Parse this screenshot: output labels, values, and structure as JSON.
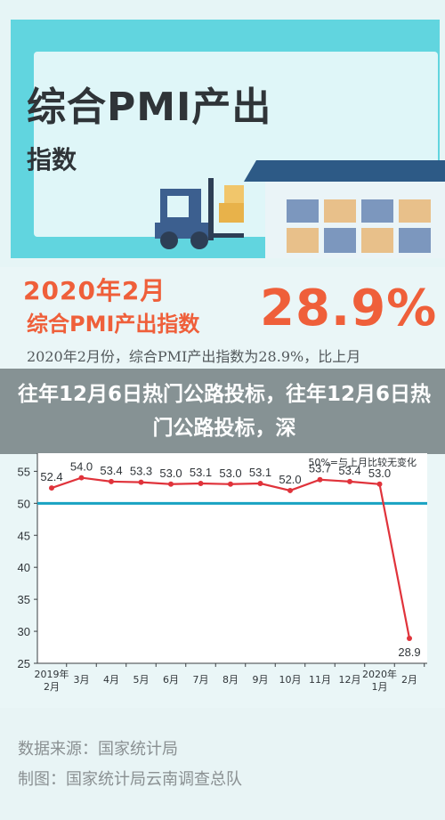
{
  "hero": {
    "title": "综合PMI产出",
    "subtitle": "指数"
  },
  "headline": {
    "line1": "2020年2月",
    "line2": "综合PMI产出指数",
    "value": "28.9%"
  },
  "description": "2020年2月份，综合PMI产出指数为28.9%，比上月",
  "article_title": "往年12月6日热门公路投标，往年12月6日热门公路投标，深",
  "chart_data": {
    "type": "line",
    "categories": [
      "2019年\n2月",
      "3月",
      "4月",
      "5月",
      "6月",
      "7月",
      "8月",
      "9月",
      "10月",
      "11月",
      "12月",
      "2020年\n1月",
      "2月"
    ],
    "series": [
      {
        "values": [
          52.4,
          54.0,
          53.4,
          53.3,
          53.0,
          53.1,
          53.0,
          53.1,
          52.0,
          53.7,
          53.4,
          53.0,
          28.9
        ]
      }
    ],
    "reference_line": 50,
    "legend": "50%=与上月比较无变化",
    "yticks": [
      25,
      30,
      35,
      40,
      45,
      50,
      55
    ],
    "ylim": [
      25,
      57
    ],
    "colors": {
      "line": "#e0333b",
      "marker": "#e0333b",
      "reference": "#18a2c2",
      "axis": "#3a3f42"
    }
  },
  "footer": {
    "source": "数据来源：国家统计局",
    "credit": "制图：国家统计局云南调查总队"
  }
}
